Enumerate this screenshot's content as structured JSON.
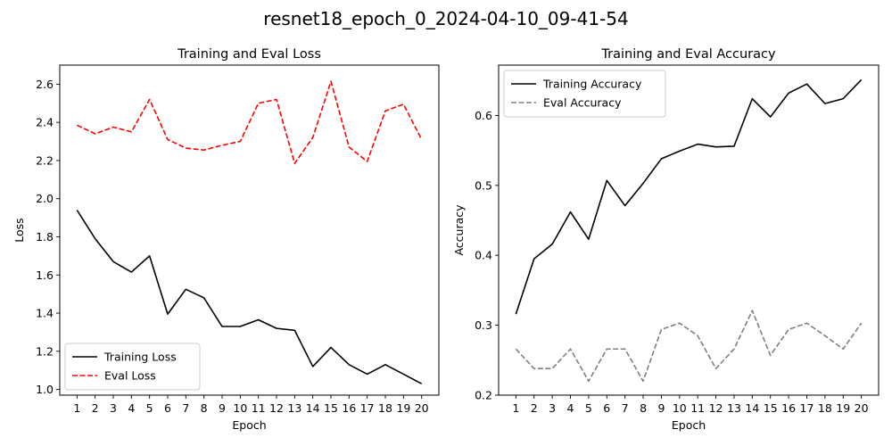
{
  "figure": {
    "title": "resnet18_epoch_0_2024-04-10_09-41-54"
  },
  "chart_data": [
    {
      "type": "line",
      "title": "Training and Eval Loss",
      "xlabel": "Epoch",
      "ylabel": "Loss",
      "x": [
        1,
        2,
        3,
        4,
        5,
        6,
        7,
        8,
        9,
        10,
        11,
        12,
        13,
        14,
        15,
        16,
        17,
        18,
        19,
        20
      ],
      "xlim": [
        0.05,
        20.95
      ],
      "ylim": [
        0.97,
        2.7
      ],
      "yticks": [
        1.0,
        1.2,
        1.4,
        1.6,
        1.8,
        2.0,
        2.2,
        2.4,
        2.6
      ],
      "ytick_labels": [
        "1.0",
        "1.2",
        "1.4",
        "1.6",
        "1.8",
        "2.0",
        "2.2",
        "2.4",
        "2.6"
      ],
      "grid": false,
      "legend_position": "lower-left",
      "series": [
        {
          "name": "Training Loss",
          "color": "#000000",
          "linestyle": "solid",
          "values": [
            1.94,
            1.79,
            1.67,
            1.615,
            1.7,
            1.395,
            1.525,
            1.48,
            1.33,
            1.33,
            1.365,
            1.32,
            1.31,
            1.12,
            1.22,
            1.13,
            1.08,
            1.13,
            1.08,
            1.03
          ]
        },
        {
          "name": "Eval Loss",
          "color": "#ff0000",
          "linestyle": "dashed",
          "values": [
            2.385,
            2.34,
            2.375,
            2.35,
            2.52,
            2.31,
            2.265,
            2.255,
            2.28,
            2.3,
            2.5,
            2.52,
            2.185,
            2.32,
            2.615,
            2.27,
            2.195,
            2.46,
            2.495,
            2.31
          ]
        }
      ]
    },
    {
      "type": "line",
      "title": "Training and Eval Accuracy",
      "xlabel": "Epoch",
      "ylabel": "Accuracy",
      "x": [
        1,
        2,
        3,
        4,
        5,
        6,
        7,
        8,
        9,
        10,
        11,
        12,
        13,
        14,
        15,
        16,
        17,
        18,
        19,
        20
      ],
      "xlim": [
        0.05,
        20.95
      ],
      "ylim": [
        0.2,
        0.672
      ],
      "yticks": [
        0.2,
        0.3,
        0.4,
        0.5,
        0.6
      ],
      "ytick_labels": [
        "0.2",
        "0.3",
        "0.4",
        "0.5",
        "0.6"
      ],
      "grid": false,
      "legend_position": "upper-left",
      "series": [
        {
          "name": "Training Accuracy",
          "color": "#000000",
          "linestyle": "solid",
          "values": [
            0.316,
            0.395,
            0.416,
            0.462,
            0.423,
            0.507,
            0.471,
            0.503,
            0.538,
            0.549,
            0.559,
            0.555,
            0.556,
            0.624,
            0.598,
            0.632,
            0.645,
            0.617,
            0.624,
            0.651
          ]
        },
        {
          "name": "Eval Accuracy",
          "color": "#808080",
          "linestyle": "dashed",
          "values": [
            0.266,
            0.238,
            0.238,
            0.266,
            0.22,
            0.266,
            0.266,
            0.22,
            0.294,
            0.303,
            0.285,
            0.238,
            0.266,
            0.321,
            0.257,
            0.294,
            0.303,
            0.285,
            0.266,
            0.303
          ]
        }
      ]
    }
  ]
}
